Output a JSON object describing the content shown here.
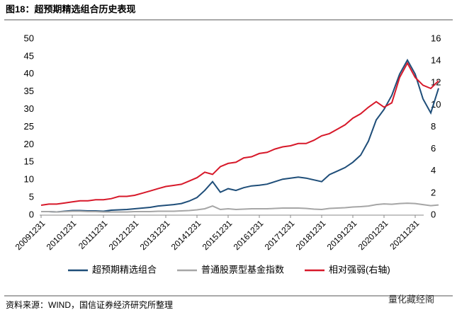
{
  "title": "图18：超预期精选组合历史表现",
  "chart_data": {
    "type": "line",
    "categories": [
      "20091231",
      null,
      null,
      null,
      "20101231",
      null,
      null,
      null,
      "20111231",
      null,
      null,
      null,
      "20121231",
      null,
      null,
      null,
      "20131231",
      null,
      null,
      null,
      "20141231",
      null,
      null,
      null,
      "20151231",
      null,
      null,
      null,
      "20161231",
      null,
      null,
      null,
      "20171231",
      null,
      null,
      null,
      "20181231",
      null,
      null,
      null,
      "20191231",
      null,
      null,
      null,
      "20201231",
      null,
      null,
      null,
      "20211231",
      null,
      null,
      null
    ],
    "series": [
      {
        "name": "超预期精选组合",
        "color": "#1f4e79",
        "values": [
          1.0,
          1.0,
          0.9,
          1.1,
          1.3,
          1.3,
          1.2,
          1.2,
          1.1,
          1.4,
          1.5,
          1.6,
          1.8,
          2.0,
          2.2,
          2.6,
          2.8,
          3.0,
          3.3,
          4.0,
          5.0,
          7.0,
          9.5,
          6.5,
          7.5,
          7.0,
          7.8,
          8.3,
          8.5,
          8.8,
          9.5,
          10.2,
          10.5,
          10.8,
          10.5,
          10.0,
          9.5,
          11.5,
          12.5,
          13.5,
          15.0,
          17.0,
          21.0,
          27.0,
          30.0,
          34.0,
          40.0,
          44.0,
          40.0,
          33.0,
          29.0,
          36.0
        ]
      },
      {
        "name": "普通股票型基金指数",
        "color": "#a6a6a6",
        "values": [
          1.0,
          1.0,
          0.9,
          1.0,
          1.1,
          1.1,
          1.0,
          1.0,
          0.9,
          0.9,
          0.9,
          0.9,
          1.0,
          1.0,
          1.0,
          1.1,
          1.1,
          1.1,
          1.2,
          1.3,
          1.5,
          1.8,
          2.6,
          1.6,
          1.8,
          1.6,
          1.7,
          1.8,
          1.8,
          1.8,
          1.9,
          2.0,
          2.0,
          2.0,
          1.9,
          1.7,
          1.6,
          1.9,
          2.0,
          2.1,
          2.3,
          2.4,
          2.6,
          3.0,
          3.2,
          3.1,
          3.3,
          3.4,
          3.3,
          3.0,
          2.7,
          2.9
        ]
      },
      {
        "name": "相对强弱(右轴)",
        "color": "#d7192a",
        "axis": "y2",
        "values": [
          0.9,
          1.0,
          1.0,
          1.1,
          1.2,
          1.3,
          1.3,
          1.4,
          1.4,
          1.5,
          1.7,
          1.7,
          1.8,
          2.0,
          2.2,
          2.4,
          2.6,
          2.7,
          2.8,
          3.1,
          3.4,
          3.9,
          3.7,
          4.4,
          4.7,
          4.8,
          5.2,
          5.3,
          5.6,
          5.7,
          6.0,
          6.2,
          6.3,
          6.5,
          6.5,
          6.8,
          7.2,
          7.4,
          7.8,
          8.2,
          8.8,
          9.2,
          9.8,
          10.3,
          9.8,
          10.2,
          12.5,
          13.8,
          12.5,
          11.8,
          11.5,
          12.2
        ]
      }
    ],
    "ylim": [
      0,
      50
    ],
    "yticks": [
      0,
      5,
      10,
      15,
      20,
      25,
      30,
      35,
      40,
      45,
      50
    ],
    "y2lim": [
      0,
      16
    ],
    "y2ticks": [
      0,
      2,
      4,
      6,
      8,
      10,
      12,
      14,
      16
    ]
  },
  "source": "资料来源：WIND，国信证券经济研究所整理",
  "watermark": "量化藏经阁"
}
